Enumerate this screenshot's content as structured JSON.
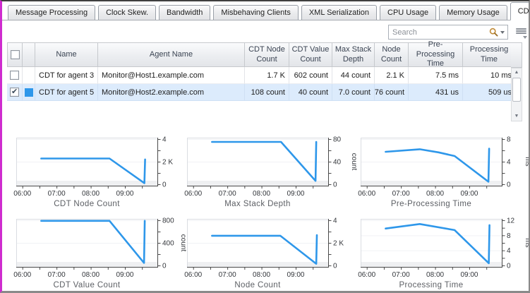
{
  "colors": {
    "accent_blue": "#2e97ea",
    "row_highlight": "#dcebfc",
    "left_border_magenta": "#cf2bcf"
  },
  "tabs": {
    "items": [
      "Message Processing",
      "Clock Skew.",
      "Bandwidth",
      "Misbehaving Clients",
      "XML Serialization",
      "CPU Usage",
      "Memory Usage",
      "CDT Submission"
    ],
    "active": "CDT Submission"
  },
  "toolbar": {
    "search_placeholder": "Search"
  },
  "table": {
    "columns": [
      "Name",
      "Agent Name",
      "CDT Node Count",
      "CDT Value Count",
      "Max Stack Depth",
      "Node Count",
      "Pre-Processing Time",
      "Processing Time"
    ],
    "rows": [
      {
        "checked": false,
        "swatch": null,
        "name": "CDT for agent 3",
        "agent_name": "Monitor@Host1.example.com",
        "cdt_node_count": "1.7 K",
        "cdt_value_count": "602 count",
        "max_stack_depth": "44 count",
        "node_count": "2.1 K",
        "pre_processing_time": "7.5 ms",
        "processing_time": "10 ms"
      },
      {
        "checked": true,
        "swatch": "#2e97ea",
        "name": "CDT for agent 5",
        "agent_name": "Monitor@Host2.example.com",
        "cdt_node_count": "108 count",
        "cdt_value_count": "40 count",
        "max_stack_depth": "7.0 count",
        "node_count": "76 count",
        "pre_processing_time": "431 us",
        "processing_time": "509 us"
      }
    ]
  },
  "chart_data": [
    {
      "type": "line",
      "title": "CDT Node Count",
      "unit": "",
      "color": "#2e97ea",
      "x_range": [
        5.82,
        9.95
      ],
      "x_tick_step": 0.5,
      "x_labels": [
        {
          "v": 6,
          "label": "06:00"
        },
        {
          "v": 7,
          "label": "07:00"
        },
        {
          "v": 8,
          "label": "08:00"
        },
        {
          "v": 9,
          "label": "09:00"
        }
      ],
      "ymax": 4,
      "ytick_step": 1,
      "y_labels": [
        {
          "v": 0,
          "label": "0"
        },
        {
          "v": 2,
          "label": "2 K"
        },
        {
          "v": 4,
          "label": "4"
        }
      ],
      "points": [
        [
          6.55,
          2.28
        ],
        [
          8.55,
          2.28
        ],
        [
          9.57,
          0.1
        ],
        [
          9.59,
          2.2
        ]
      ]
    },
    {
      "type": "line",
      "title": "Max Stack Depth",
      "unit": "count",
      "color": "#2e97ea",
      "x_range": [
        5.82,
        9.95
      ],
      "x_tick_step": 0.5,
      "x_labels": [
        {
          "v": 6,
          "label": "06:00"
        },
        {
          "v": 7,
          "label": "07:00"
        },
        {
          "v": 8,
          "label": "08:00"
        },
        {
          "v": 9,
          "label": "09:00"
        }
      ],
      "ymax": 80,
      "ytick_step": 20,
      "y_labels": [
        {
          "v": 0,
          "label": "0"
        },
        {
          "v": 40,
          "label": "40"
        },
        {
          "v": 80,
          "label": "80"
        }
      ],
      "points": [
        [
          6.55,
          75
        ],
        [
          8.57,
          75
        ],
        [
          9.58,
          6
        ],
        [
          9.6,
          75
        ]
      ]
    },
    {
      "type": "line",
      "title": "Pre-Processing Time",
      "unit": "ms",
      "color": "#2e97ea",
      "x_range": [
        5.82,
        9.95
      ],
      "x_tick_step": 0.5,
      "x_labels": [
        {
          "v": 6,
          "label": "06:00"
        },
        {
          "v": 7,
          "label": "07:00"
        },
        {
          "v": 8,
          "label": "08:00"
        },
        {
          "v": 9,
          "label": "09:00"
        }
      ],
      "ymax": 8,
      "ytick_step": 2,
      "y_labels": [
        {
          "v": 0,
          "label": "0"
        },
        {
          "v": 4,
          "label": "4"
        },
        {
          "v": 8,
          "label": "8"
        }
      ],
      "points": [
        [
          6.55,
          5.75
        ],
        [
          7.55,
          6.2
        ],
        [
          8.1,
          5.65
        ],
        [
          8.57,
          5.0
        ],
        [
          9.56,
          0.45
        ],
        [
          9.58,
          6.3
        ]
      ]
    },
    {
      "type": "line",
      "title": "CDT Value Count",
      "unit": "count",
      "color": "#2e97ea",
      "x_range": [
        5.82,
        9.95
      ],
      "x_tick_step": 0.5,
      "x_labels": [
        {
          "v": 6,
          "label": "06:00"
        },
        {
          "v": 7,
          "label": "07:00"
        },
        {
          "v": 8,
          "label": "08:00"
        },
        {
          "v": 9,
          "label": "09:00"
        }
      ],
      "ymax": 800,
      "ytick_step": 200,
      "y_labels": [
        {
          "v": 0,
          "label": "0"
        },
        {
          "v": 400,
          "label": "400"
        },
        {
          "v": 800,
          "label": "800"
        }
      ],
      "points": [
        [
          6.55,
          790
        ],
        [
          8.55,
          790
        ],
        [
          9.56,
          45
        ],
        [
          9.58,
          790
        ]
      ]
    },
    {
      "type": "line",
      "title": "Node Count",
      "unit": "",
      "color": "#2e97ea",
      "x_range": [
        5.82,
        9.95
      ],
      "x_tick_step": 0.5,
      "x_labels": [
        {
          "v": 6,
          "label": "06:00"
        },
        {
          "v": 7,
          "label": "07:00"
        },
        {
          "v": 8,
          "label": "08:00"
        },
        {
          "v": 9,
          "label": "09:00"
        }
      ],
      "ymax": 4,
      "ytick_step": 1,
      "y_labels": [
        {
          "v": 0,
          "label": "0"
        },
        {
          "v": 2,
          "label": "2 K"
        },
        {
          "v": 4,
          "label": "4"
        }
      ],
      "points": [
        [
          6.55,
          2.63
        ],
        [
          8.55,
          2.63
        ],
        [
          9.6,
          0.15
        ],
        [
          9.62,
          2.68
        ]
      ]
    },
    {
      "type": "line",
      "title": "Processing Time",
      "unit": "ms",
      "color": "#2e97ea",
      "x_range": [
        5.82,
        9.95
      ],
      "x_tick_step": 0.5,
      "x_labels": [
        {
          "v": 6,
          "label": "06:00"
        },
        {
          "v": 7,
          "label": "07:00"
        },
        {
          "v": 8,
          "label": "08:00"
        },
        {
          "v": 9,
          "label": "09:00"
        }
      ],
      "ymax": 12,
      "ytick_step": 2,
      "y_labels": [
        {
          "v": 0,
          "label": "0"
        },
        {
          "v": 4,
          "label": "4"
        },
        {
          "v": 8,
          "label": "8"
        },
        {
          "v": 12,
          "label": "12"
        }
      ],
      "points": [
        [
          6.55,
          9.8
        ],
        [
          7.55,
          11.0
        ],
        [
          8.57,
          9.4
        ],
        [
          9.57,
          0.6
        ],
        [
          9.59,
          10.7
        ]
      ]
    }
  ]
}
